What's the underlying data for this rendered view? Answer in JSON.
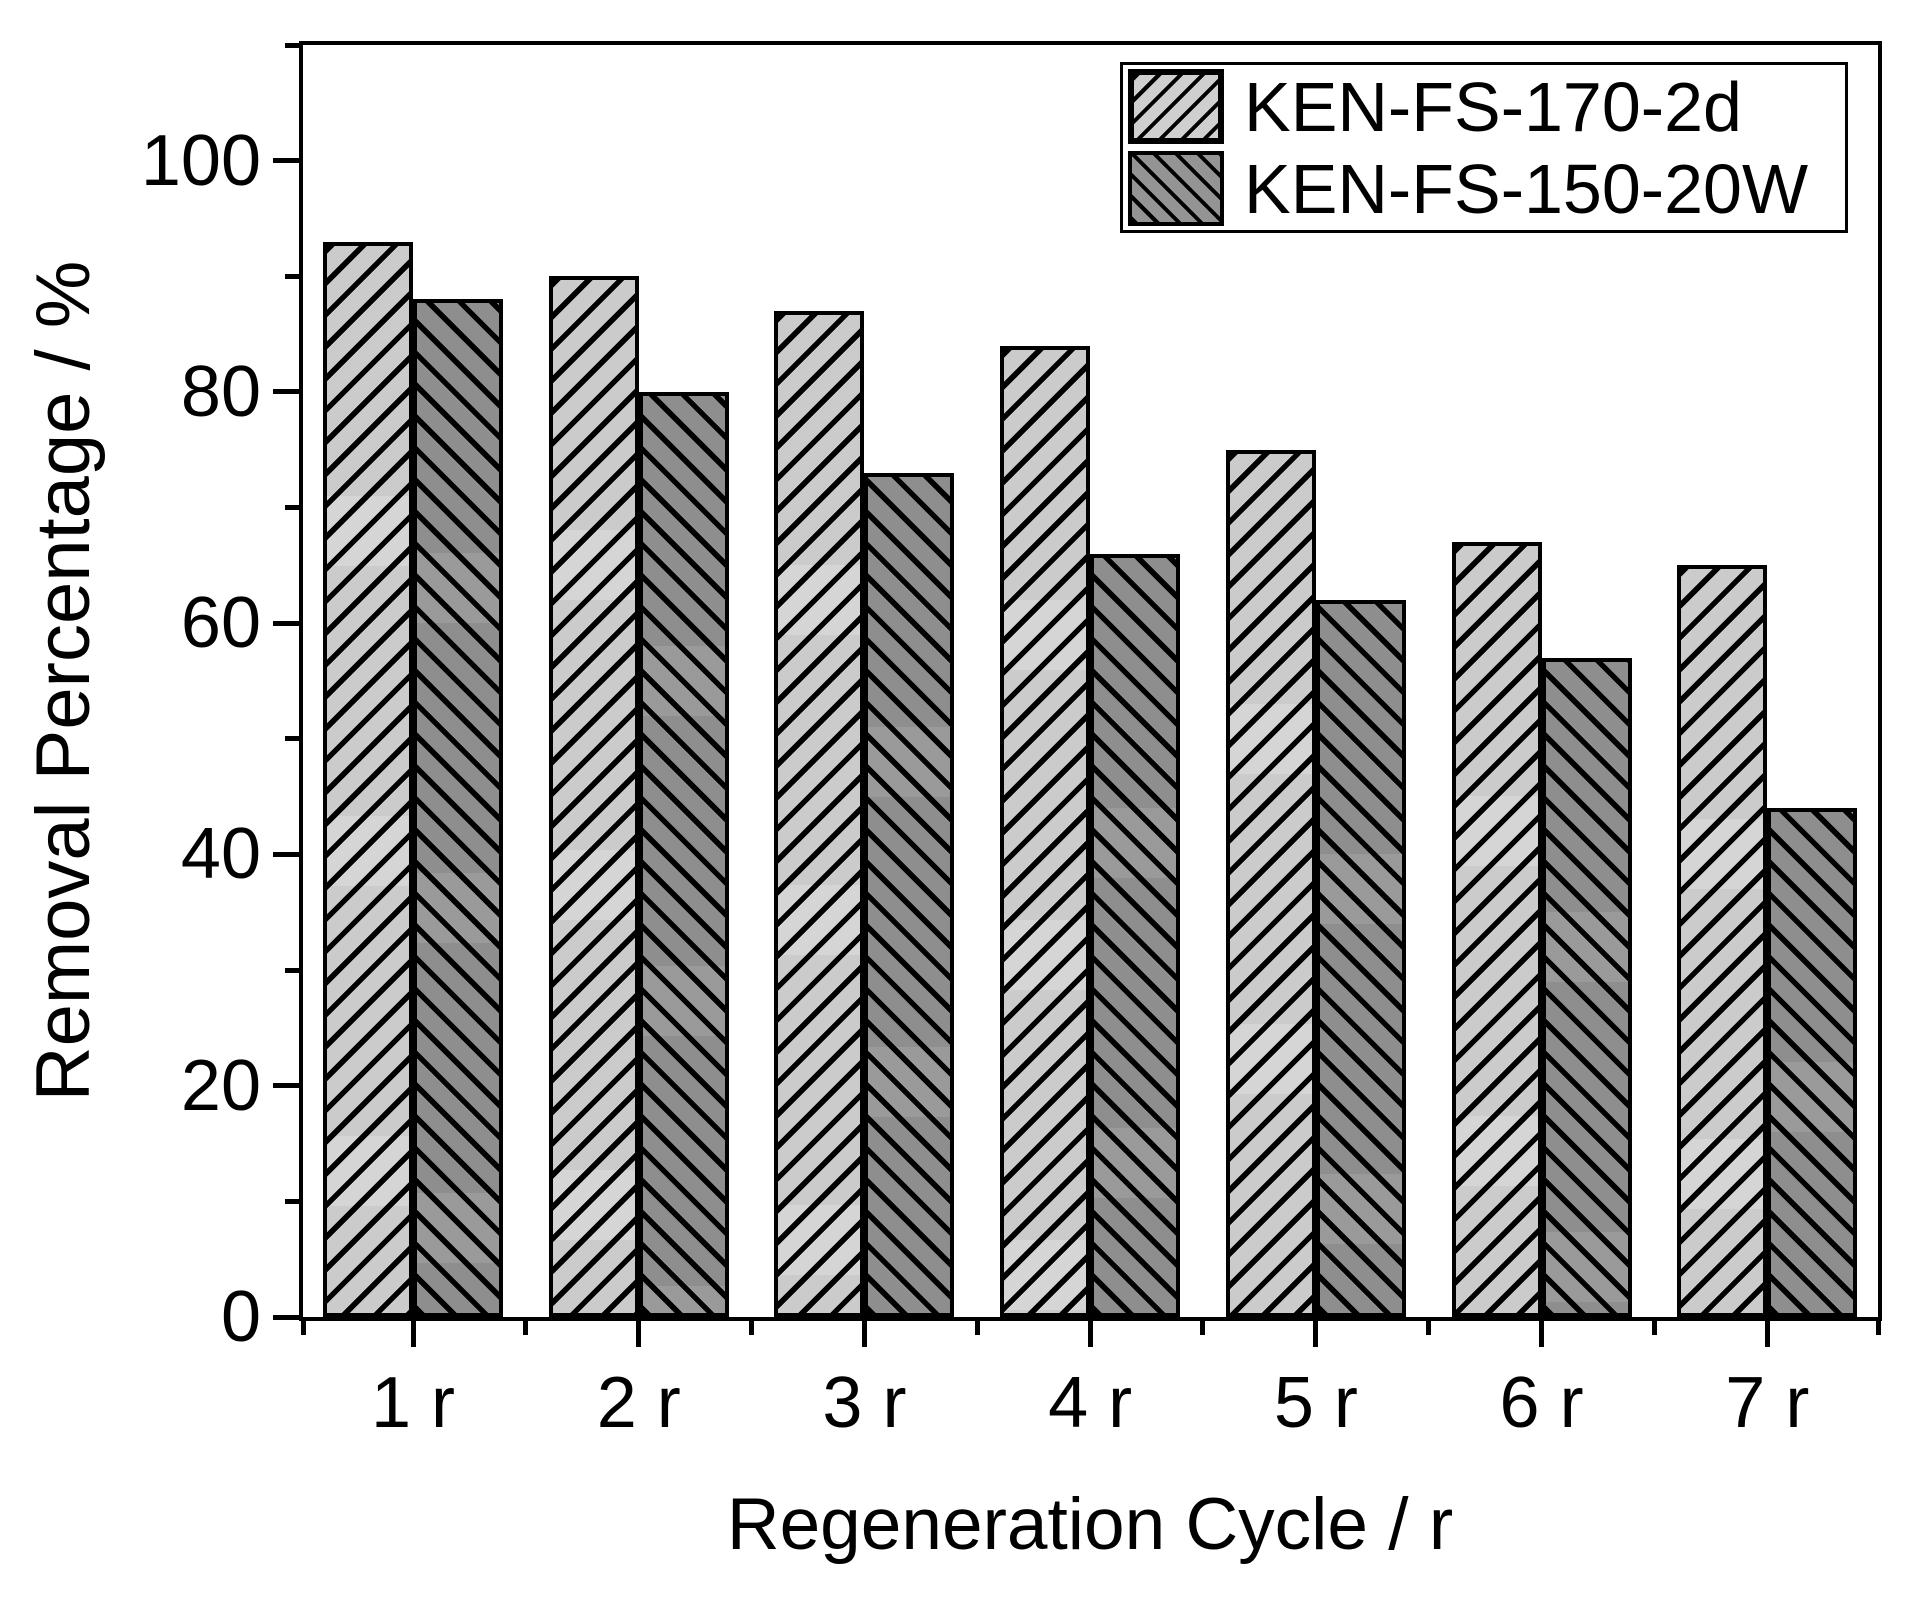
{
  "chart_data": {
    "type": "bar",
    "title": "",
    "xlabel": "Regeneration Cycle / r",
    "ylabel": "Removal Percentage / %",
    "categories": [
      "1 r",
      "2 r",
      "3 r",
      "4 r",
      "5 r",
      "6 r",
      "7 r"
    ],
    "series": [
      {
        "name": "KEN-FS-170-2d",
        "hatch": "forward-diagonal",
        "fill": "#cbcbcb",
        "values": [
          93,
          90,
          87,
          84,
          75,
          67,
          65
        ]
      },
      {
        "name": "KEN-FS-150-20W",
        "hatch": "backward-diagonal",
        "fill": "#8e8e8e",
        "values": [
          88,
          80,
          73,
          66,
          62,
          57,
          44
        ]
      }
    ],
    "ylim": [
      0,
      110
    ],
    "yticks_major": [
      0,
      20,
      40,
      60,
      80,
      100
    ],
    "yticks_minor": [
      10,
      30,
      50,
      70,
      90,
      110
    ],
    "grid": false,
    "legend_position": "top-right",
    "frame_color": "#000000",
    "background": "#ffffff"
  }
}
